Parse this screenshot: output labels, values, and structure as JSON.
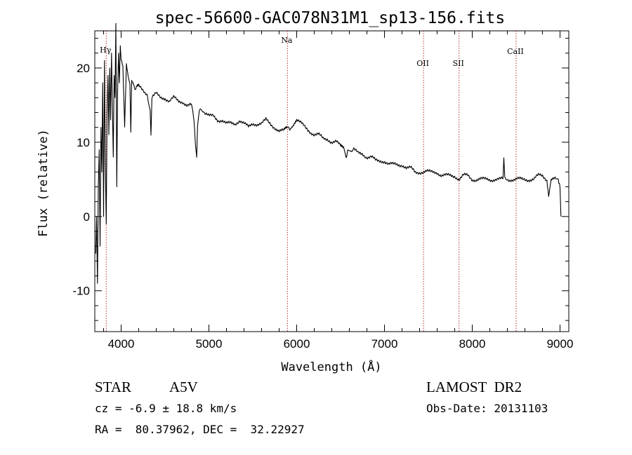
{
  "chart_data": {
    "type": "line",
    "title": "spec-56600-GAC078N31M1_sp13-156.fits",
    "xlabel": "Wavelength (Å)",
    "ylabel": "Flux (relative)",
    "xlim": [
      3700,
      9100
    ],
    "ylim": [
      -15.5,
      25
    ],
    "xticks": [
      4000,
      5000,
      6000,
      7000,
      8000,
      9000
    ],
    "yticks": [
      -10,
      0,
      10,
      20
    ],
    "grid": false,
    "spectral_lines": [
      {
        "name": "Hγ",
        "wavelength": 3830
      },
      {
        "name": "Na",
        "wavelength": 5895
      },
      {
        "name": "OII",
        "wavelength": 7445
      },
      {
        "name": "SII",
        "wavelength": 7850
      },
      {
        "name": "CaII",
        "wavelength": 8500
      }
    ],
    "series": [
      {
        "name": "spectrum",
        "x": [
          3710,
          3720,
          3730,
          3740,
          3750,
          3760,
          3770,
          3780,
          3790,
          3800,
          3810,
          3820,
          3830,
          3840,
          3850,
          3860,
          3870,
          3880,
          3890,
          3900,
          3910,
          3920,
          3930,
          3940,
          3950,
          3960,
          3970,
          3980,
          3990,
          4000,
          4020,
          4040,
          4060,
          4080,
          4100,
          4110,
          4120,
          4140,
          4160,
          4180,
          4200,
          4250,
          4300,
          4330,
          4340,
          4350,
          4400,
          4450,
          4500,
          4550,
          4600,
          4650,
          4700,
          4750,
          4800,
          4830,
          4850,
          4861,
          4870,
          4890,
          4920,
          4950,
          5000,
          5050,
          5100,
          5150,
          5200,
          5250,
          5300,
          5350,
          5400,
          5450,
          5500,
          5550,
          5600,
          5650,
          5700,
          5750,
          5800,
          5850,
          5890,
          5920,
          5960,
          6000,
          6050,
          6100,
          6150,
          6200,
          6250,
          6300,
          6350,
          6400,
          6450,
          6500,
          6540,
          6563,
          6580,
          6620,
          6650,
          6700,
          6750,
          6800,
          6850,
          6900,
          6950,
          7000,
          7050,
          7100,
          7150,
          7200,
          7250,
          7300,
          7350,
          7400,
          7450,
          7500,
          7550,
          7600,
          7650,
          7700,
          7750,
          7800,
          7850,
          7900,
          7950,
          8000,
          8050,
          8100,
          8150,
          8200,
          8250,
          8300,
          8350,
          8360,
          8370,
          8400,
          8450,
          8500,
          8550,
          8600,
          8650,
          8700,
          8750,
          8800,
          8850,
          8870,
          8900,
          8950,
          8980,
          9000,
          9010
        ],
        "y": [
          -5,
          0,
          -9,
          4,
          9,
          -4,
          12,
          6,
          18,
          0,
          21,
          7,
          -1,
          14,
          19,
          11,
          20,
          13,
          22,
          15,
          8,
          19,
          16,
          26,
          4,
          17,
          22,
          18,
          23,
          21,
          20,
          12,
          20.5,
          19,
          18,
          11,
          18.5,
          18,
          17,
          17.5,
          17.5,
          17,
          16.5,
          14,
          11,
          16,
          16.5,
          16,
          16,
          15.5,
          16,
          15.5,
          15.5,
          15,
          15,
          13,
          9,
          8,
          12,
          14,
          14.5,
          14,
          13.5,
          13.5,
          13,
          13,
          12.5,
          12.5,
          12.5,
          13,
          12.5,
          12,
          12.5,
          12.5,
          12.5,
          13,
          12.5,
          12,
          11.5,
          11.5,
          12,
          11.5,
          12,
          13,
          12.5,
          12,
          11.5,
          11,
          11,
          10.5,
          10.5,
          10,
          10,
          9.5,
          9,
          8,
          9,
          9,
          9,
          8.5,
          8.5,
          8,
          8,
          7.5,
          7.5,
          7.5,
          7,
          7,
          7,
          7,
          6.5,
          6.5,
          6,
          6,
          6,
          6,
          6,
          6,
          5.5,
          5.5,
          5.5,
          5.5,
          5,
          5.5,
          5.5,
          5,
          5,
          5,
          5,
          5,
          5,
          5,
          5,
          8,
          5,
          5,
          5,
          5,
          5,
          5,
          5,
          5,
          5.5,
          5.5,
          5,
          3,
          5,
          5,
          5,
          4,
          0
        ]
      }
    ]
  },
  "info": {
    "object_class": "STAR",
    "subclass": "A5V",
    "survey": "LAMOST  DR2",
    "redshift": "cz = -6.9 ± 18.8 km/s",
    "obs_date": "Obs-Date: 20131103",
    "coords": "RA =  80.37962, DEC =  32.22927"
  }
}
